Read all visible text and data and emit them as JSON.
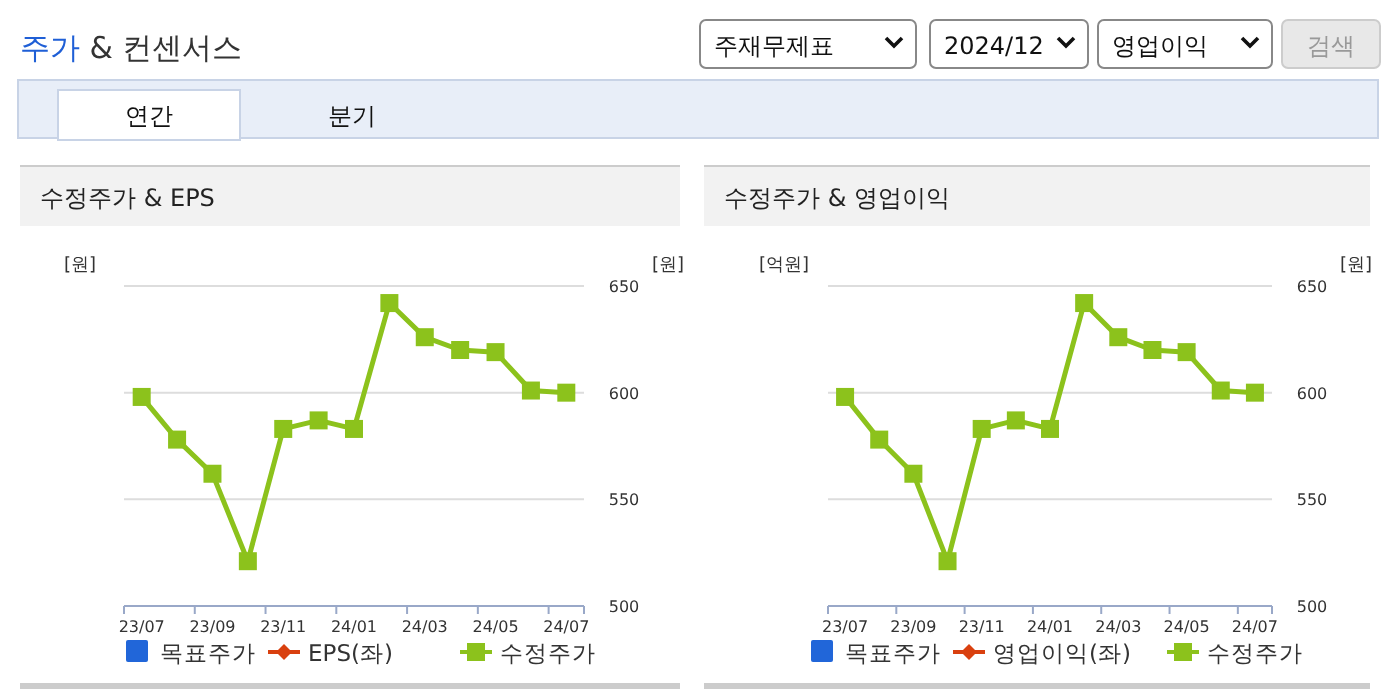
{
  "chart_data": [
    {
      "type": "other",
      "title": "주가 & 컨센서스",
      "annotations": [
        "주재무제표",
        "2024/12",
        "영업이익",
        "검색",
        "연간",
        "분기"
      ]
    },
    {
      "type": "line",
      "title": "수정주가 & EPS",
      "ylabel": "[원]",
      "y2label": "[원]",
      "categories": [
        "23/07",
        null,
        "23/09",
        null,
        "23/11",
        null,
        "24/01",
        null,
        "24/03",
        null,
        "24/05",
        null,
        "24/07"
      ],
      "y2lim": [
        500,
        650
      ],
      "y2ticks": [
        500,
        550,
        600,
        650
      ],
      "grid": "y",
      "legend": "bottom",
      "series": [
        {
          "name": "목표주가",
          "type": "bar",
          "color": "#2166d9",
          "values": [
            null,
            null,
            null,
            null,
            null,
            null,
            null,
            null,
            null,
            null,
            null,
            null,
            null
          ]
        },
        {
          "name": "EPS(좌)",
          "color": "#d9400f",
          "marker": "diamond",
          "values": [
            null,
            null,
            null,
            null,
            null,
            null,
            null,
            null,
            null,
            null,
            null,
            null,
            null
          ]
        },
        {
          "name": "수정주가",
          "color": "#8cc21c",
          "marker": "square",
          "axis": "y2",
          "values": [
            598,
            578,
            562,
            521,
            583,
            587,
            583,
            642,
            626,
            620,
            619,
            601,
            600
          ]
        }
      ]
    },
    {
      "type": "line",
      "title": "수정주가 & 영업이익",
      "ylabel": "[억원]",
      "y2label": "[원]",
      "categories": [
        "23/07",
        null,
        "23/09",
        null,
        "23/11",
        null,
        "24/01",
        null,
        "24/03",
        null,
        "24/05",
        null,
        "24/07"
      ],
      "y2lim": [
        500,
        650
      ],
      "y2ticks": [
        500,
        550,
        600,
        650
      ],
      "grid": "y",
      "legend": "bottom",
      "series": [
        {
          "name": "목표주가",
          "type": "bar",
          "color": "#2166d9",
          "values": [
            null,
            null,
            null,
            null,
            null,
            null,
            null,
            null,
            null,
            null,
            null,
            null,
            null
          ]
        },
        {
          "name": "영업이익(좌)",
          "color": "#d9400f",
          "marker": "diamond",
          "values": [
            null,
            null,
            null,
            null,
            null,
            null,
            null,
            null,
            null,
            null,
            null,
            null,
            null
          ]
        },
        {
          "name": "수정주가",
          "color": "#8cc21c",
          "marker": "square",
          "axis": "y2",
          "values": [
            598,
            578,
            562,
            521,
            583,
            587,
            583,
            642,
            626,
            620,
            619,
            601,
            600
          ]
        }
      ]
    }
  ]
}
